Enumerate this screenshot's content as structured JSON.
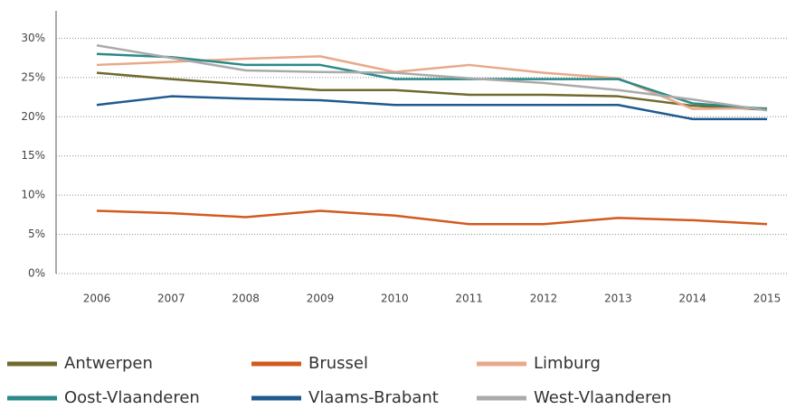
{
  "chart_data": {
    "type": "line",
    "categories": [
      "2006",
      "2007",
      "2008",
      "2009",
      "2010",
      "2011",
      "2012",
      "2013",
      "2014",
      "2015"
    ],
    "series": [
      {
        "name": "Antwerpen",
        "color": "#6f6b2e",
        "values": [
          25.6,
          24.8,
          24.1,
          23.4,
          23.4,
          22.8,
          22.8,
          22.6,
          21.4,
          20.9
        ]
      },
      {
        "name": "Brussel",
        "color": "#d35a1f",
        "values": [
          8.0,
          7.7,
          7.2,
          8.0,
          7.4,
          6.3,
          6.3,
          7.1,
          6.8,
          6.3
        ]
      },
      {
        "name": "Limburg",
        "color": "#e8a98a",
        "values": [
          26.6,
          27.0,
          27.4,
          27.7,
          25.7,
          26.6,
          25.6,
          24.9,
          21.0,
          21.1
        ]
      },
      {
        "name": "Oost-Vlaanderen",
        "color": "#2a8a87",
        "values": [
          28.0,
          27.6,
          26.6,
          26.6,
          24.8,
          24.8,
          24.8,
          24.8,
          21.7,
          21.0
        ]
      },
      {
        "name": "Vlaams-Brabant",
        "color": "#1f5a8e",
        "values": [
          21.5,
          22.6,
          22.3,
          22.1,
          21.5,
          21.5,
          21.5,
          21.5,
          19.7,
          19.7
        ]
      },
      {
        "name": "West-Vlaanderen",
        "color": "#aaaaaa",
        "values": [
          29.1,
          27.5,
          25.9,
          25.7,
          25.6,
          24.9,
          24.3,
          23.4,
          22.2,
          20.8
        ]
      }
    ],
    "ylim": [
      0,
      33.5
    ],
    "yticks": [
      {
        "value": 0,
        "label": "0%"
      },
      {
        "value": 5,
        "label": "5%"
      },
      {
        "value": 10,
        "label": "10%"
      },
      {
        "value": 15,
        "label": "15%"
      },
      {
        "value": 20,
        "label": "20%"
      },
      {
        "value": 25,
        "label": "25%"
      },
      {
        "value": 30,
        "label": "30%"
      }
    ],
    "grid": true
  }
}
